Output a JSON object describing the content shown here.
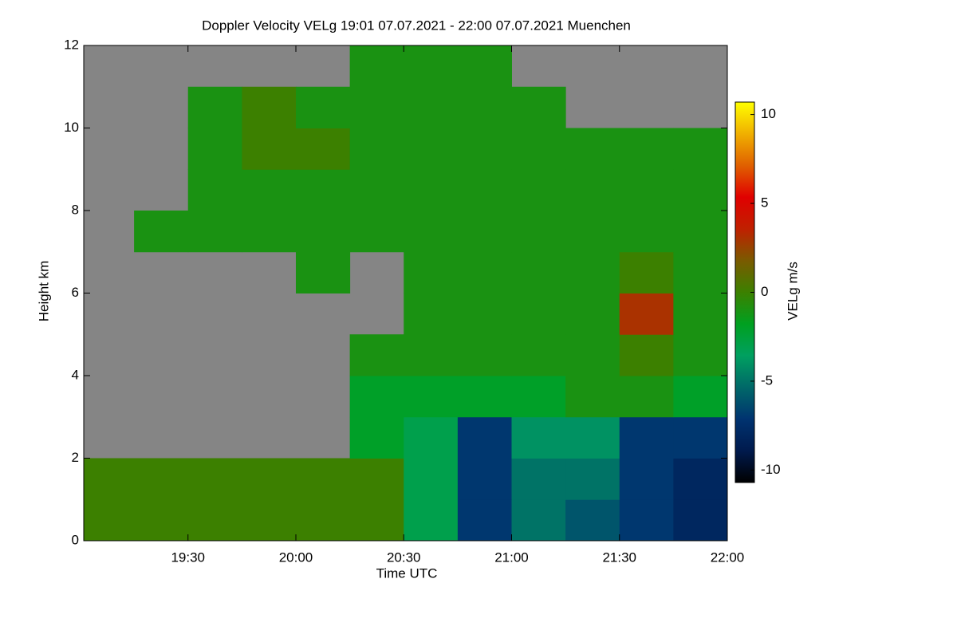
{
  "chart_data": {
    "type": "heatmap",
    "title": "Doppler Velocity VELg   19:01 07.07.2021 - 22:00 07.07.2021 Muenchen",
    "x_label": "Time UTC",
    "y_label": "Height km",
    "colorbar_label": "VELg m/s",
    "x": [
      19.125,
      19.375,
      19.625,
      19.875,
      20.125,
      20.375,
      20.625,
      20.875,
      21.125,
      21.375,
      21.625,
      21.875
    ],
    "y": [
      0.5,
      1.5,
      2.5,
      3.5,
      4.5,
      5.5,
      6.5,
      7.5,
      8.5,
      9.5,
      10.5,
      11.5
    ],
    "z": [
      [
        0,
        0,
        0,
        0,
        0,
        0,
        -3,
        -7,
        -5,
        -6,
        -7,
        -8
      ],
      [
        0,
        0,
        0,
        0,
        0,
        0,
        -3,
        -7,
        -5,
        -5,
        -7,
        -8
      ],
      [
        null,
        null,
        null,
        null,
        null,
        -2,
        -3,
        -7,
        -4,
        -4,
        -7,
        -7
      ],
      [
        null,
        null,
        null,
        null,
        null,
        -2,
        -2,
        -2,
        -2,
        -1,
        -1,
        -2
      ],
      [
        null,
        null,
        null,
        null,
        null,
        -1,
        -1,
        -1,
        -1,
        -1,
        0,
        -1
      ],
      [
        null,
        null,
        null,
        null,
        null,
        null,
        -1,
        -1,
        -1,
        -1,
        3,
        -1
      ],
      [
        null,
        null,
        null,
        null,
        -1,
        null,
        -1,
        -1,
        -1,
        -1,
        0,
        -1
      ],
      [
        null,
        -1,
        -1,
        -1,
        -1,
        -1,
        -1,
        -1,
        -1,
        -1,
        -1,
        -1
      ],
      [
        null,
        null,
        -1,
        -1,
        -1,
        -1,
        -1,
        -1,
        -1,
        -1,
        -1,
        -1
      ],
      [
        null,
        null,
        -1,
        0,
        0,
        -1,
        -1,
        -1,
        -1,
        -1,
        -1,
        -1
      ],
      [
        null,
        null,
        -1,
        0,
        -1,
        -1,
        -1,
        -1,
        -1,
        null,
        null,
        null
      ],
      [
        null,
        null,
        null,
        null,
        null,
        -1,
        -1,
        -1,
        null,
        null,
        null,
        null
      ]
    ],
    "xlim": [
      19.0167,
      22.0
    ],
    "xticks": [
      {
        "value": 19.5,
        "label": "19:30"
      },
      {
        "value": 20.0,
        "label": "20:00"
      },
      {
        "value": 20.5,
        "label": "20:30"
      },
      {
        "value": 21.0,
        "label": "21:00"
      },
      {
        "value": 21.5,
        "label": "21:30"
      },
      {
        "value": 22.0,
        "label": "22:00"
      }
    ],
    "ylim": [
      0,
      12
    ],
    "yticks": [
      0,
      2,
      4,
      6,
      8,
      10,
      12
    ],
    "clim": [
      -10.7,
      10.7
    ],
    "cticks": [
      -10,
      -5,
      0,
      5,
      10
    ],
    "missing_color": "#858585",
    "colors": [
      "#000000",
      "#001a4d",
      "#003370",
      "#006868",
      "#00a060",
      "#00a020",
      "#3c8000",
      "#7a5a00",
      "#c02000",
      "#e00000",
      "#e06000",
      "#f0b000",
      "#ffff00"
    ]
  }
}
